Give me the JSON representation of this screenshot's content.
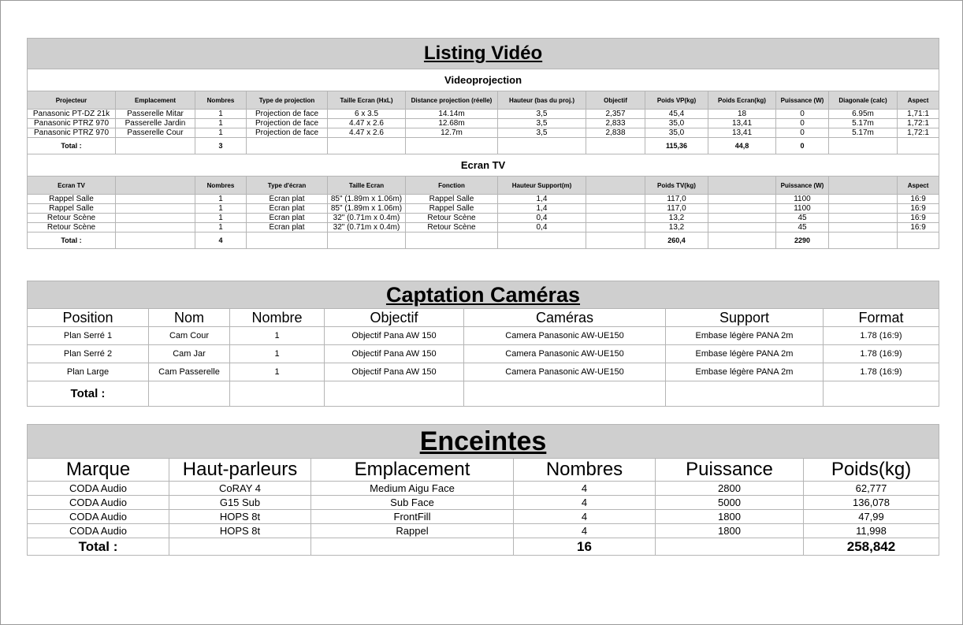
{
  "listing_video": {
    "title": "Listing Vidéo",
    "videoprojection": {
      "title": "Videoprojection",
      "headers": [
        "Projecteur",
        "Emplacement",
        "Nombres",
        "Type de projection",
        "Taille Ecran (HxL)",
        "Distance projection (réelle)",
        "Hauteur (bas du proj.)",
        "Objectif",
        "Poids VP(kg)",
        "Poids Ecran(kg)",
        "Puissance (W)",
        "Diagonale (calc)",
        "Aspect"
      ],
      "rows": [
        [
          "Panasonic PT-DZ 21k",
          "Passerelle Mitar",
          "1",
          "Projection de face",
          "6 x 3.5",
          "14.14m",
          "3,5",
          "2,357",
          "45,4",
          "18",
          "0",
          "6.95m",
          "1,71:1"
        ],
        [
          "Panasonic PTRZ 970",
          "Passerelle Jardin",
          "1",
          "Projection de face",
          "4.47 x 2.6",
          "12.68m",
          "3,5",
          "2,833",
          "35,0",
          "13,41",
          "0",
          "5.17m",
          "1,72:1"
        ],
        [
          "Panasonic PTRZ 970",
          "Passerelle Cour",
          "1",
          "Projection de face",
          "4.47 x 2.6",
          "12.7m",
          "3,5",
          "2,838",
          "35,0",
          "13,41",
          "0",
          "5.17m",
          "1,72:1"
        ]
      ],
      "total": [
        "Total :",
        "",
        "3",
        "",
        "",
        "",
        "",
        "",
        "115,36",
        "44,8",
        "0",
        "",
        ""
      ]
    },
    "ecran_tv": {
      "title": "Ecran TV",
      "headers": [
        "Ecran TV",
        "",
        "Nombres",
        "Type d'écran",
        "Taille Ecran",
        "Fonction",
        "Hauteur Support(m)",
        "",
        "Poids TV(kg)",
        "",
        "Puissance (W)",
        "",
        "Aspect"
      ],
      "rows": [
        [
          "Rappel Salle",
          "",
          "1",
          "Écran plat",
          "85\" (1.89m x 1.06m)",
          "Rappel Salle",
          "1,4",
          "",
          "117,0",
          "",
          "1100",
          "",
          "16:9"
        ],
        [
          "Rappel Salle",
          "",
          "1",
          "Écran plat",
          "85\" (1.89m x 1.06m)",
          "Rappel Salle",
          "1,4",
          "",
          "117,0",
          "",
          "1100",
          "",
          "16:9"
        ],
        [
          "Retour Scène",
          "",
          "1",
          "Écran plat",
          "32\" (0.71m x 0.4m)",
          "Retour Scène",
          "0,4",
          "",
          "13,2",
          "",
          "45",
          "",
          "16:9"
        ],
        [
          "Retour Scène",
          "",
          "1",
          "Écran plat",
          "32\" (0.71m x 0.4m)",
          "Retour Scène",
          "0,4",
          "",
          "13,2",
          "",
          "45",
          "",
          "16:9"
        ]
      ],
      "total": [
        "Total :",
        "",
        "4",
        "",
        "",
        "",
        "",
        "",
        "260,4",
        "",
        "2290",
        "",
        ""
      ]
    }
  },
  "captation": {
    "title": "Captation Caméras",
    "headers": [
      "Position",
      "Nom",
      "Nombre",
      "Objectif",
      "Caméras",
      "Support",
      "Format"
    ],
    "rows": [
      [
        "Plan Serré 1",
        "Cam Cour",
        "1",
        "Objectif Pana AW 150",
        "Camera Panasonic AW-UE150",
        "Embase légère PANA 2m",
        "1.78 (16:9)"
      ],
      [
        "Plan Serré 2",
        "Cam Jar",
        "1",
        "Objectif Pana AW 150",
        "Camera Panasonic AW-UE150",
        "Embase légère PANA 2m",
        "1.78 (16:9)"
      ],
      [
        "Plan Large",
        "Cam Passerelle",
        "1",
        "Objectif Pana AW 150",
        "Camera Panasonic AW-UE150",
        "Embase légère PANA 2m",
        "1.78 (16:9)"
      ]
    ],
    "total": [
      "Total :",
      "",
      "",
      "",
      "",
      "",
      ""
    ]
  },
  "enceintes": {
    "title": "Enceintes",
    "headers": [
      "Marque",
      "Haut-parleurs",
      "Emplacement",
      "Nombres",
      "Puissance",
      "Poids(kg)"
    ],
    "rows": [
      [
        "CODA Audio",
        "CoRAY 4",
        "Medium Aigu Face",
        "4",
        "2800",
        "62,777"
      ],
      [
        "CODA Audio",
        "G15 Sub",
        "Sub Face",
        "4",
        "5000",
        "136,078"
      ],
      [
        "CODA Audio",
        "HOPS 8t",
        "FrontFill",
        "4",
        "1800",
        "47,99"
      ],
      [
        "CODA Audio",
        "HOPS 8t",
        "Rappel",
        "4",
        "1800",
        "11,998"
      ]
    ],
    "total": [
      "Total :",
      "",
      "",
      "16",
      "",
      "258,842"
    ]
  }
}
